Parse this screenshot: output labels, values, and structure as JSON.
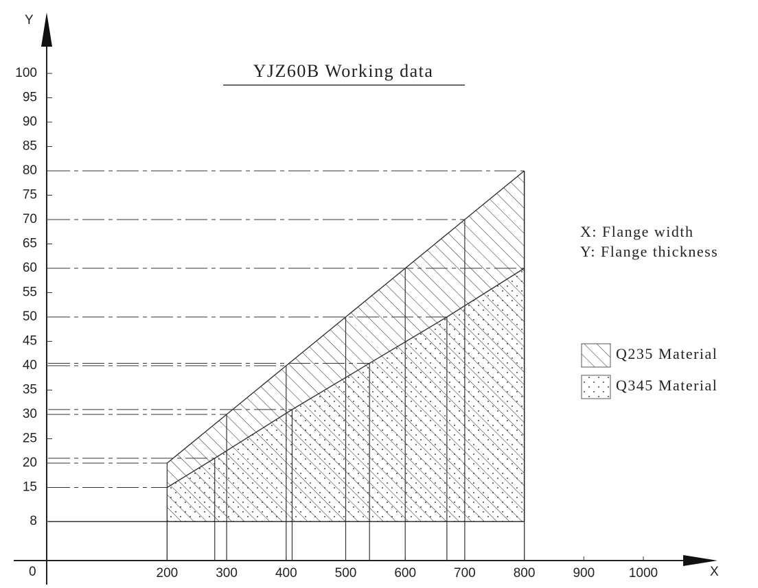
{
  "chart_data": {
    "type": "area",
    "title": "YJZ60B Working data",
    "x_axis_label": "X",
    "y_axis_label": "Y",
    "origin_label": "0",
    "annotations": [
      "X: Flange width",
      "Y: Flange thickness"
    ],
    "xlim": [
      0,
      1000
    ],
    "ylim": [
      0,
      100
    ],
    "xticks": [
      200,
      300,
      400,
      500,
      600,
      700,
      800,
      900,
      1000
    ],
    "yticks": [
      8,
      15,
      20,
      25,
      30,
      35,
      40,
      45,
      50,
      55,
      60,
      65,
      70,
      75,
      80,
      85,
      90,
      95,
      100
    ],
    "baseline": 8,
    "series": [
      {
        "name": "Q235 Material",
        "pattern": "hatch",
        "color": "#333333",
        "x": [
          200,
          300,
          400,
          500,
          600,
          700,
          800
        ],
        "values": [
          20,
          30,
          40,
          50,
          60,
          70,
          80
        ]
      },
      {
        "name": "Q345 Material",
        "pattern": "dots",
        "color": "#333333",
        "x": [
          200,
          280,
          410,
          540,
          670,
          800
        ],
        "values": [
          15,
          21,
          31,
          40.5,
          50,
          60
        ]
      }
    ]
  }
}
